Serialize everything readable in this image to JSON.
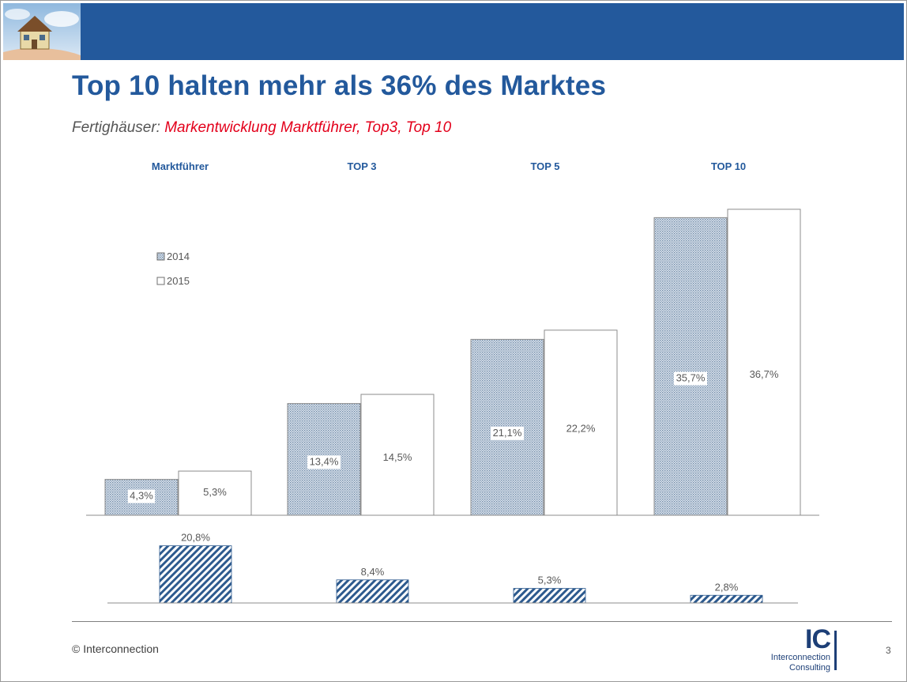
{
  "slide": {
    "title": "Top 10 halten mehr als 36% des Marktes",
    "subtitle_prefix": "Fertighäuser: ",
    "subtitle_highlight": "Markentwicklung Marktführer, Top3, Top 10",
    "copyright": "© Interconnection",
    "page_number": "3",
    "logo": {
      "letters": "IC",
      "name": "Interconnection",
      "sub": "Consulting"
    }
  },
  "colors": {
    "brand_blue": "#23599c",
    "highlight_red": "#e3001b",
    "bar_2014": "#c3cfdd",
    "bar_2015": "#ffffff",
    "change_bar": "#2d5a8e"
  },
  "chart_data": [
    {
      "type": "bar",
      "categories": [
        "Marktführer",
        "TOP 3",
        "TOP 5",
        "TOP 10"
      ],
      "series": [
        {
          "name": "2014",
          "values": [
            4.3,
            13.4,
            21.1,
            35.7
          ],
          "labels": [
            "4,3%",
            "13,4%",
            "21,1%",
            "35,7%"
          ]
        },
        {
          "name": "2015",
          "values": [
            5.3,
            14.5,
            22.2,
            36.7
          ],
          "labels": [
            "5,3%",
            "14,5%",
            "22,2%",
            "36,7%"
          ]
        }
      ],
      "legend": [
        "2014",
        "2015"
      ],
      "legend_position": "top-left",
      "ylim": [
        0,
        40
      ],
      "grid": false
    },
    {
      "type": "bar",
      "categories": [
        "Marktführer",
        "TOP 3",
        "TOP 5",
        "TOP 10"
      ],
      "values": [
        20.8,
        8.4,
        5.3,
        2.8
      ],
      "labels": [
        "20,8%",
        "8,4%",
        "5,3%",
        "2,8%"
      ],
      "ylim": [
        0,
        25
      ],
      "grid": false
    }
  ]
}
